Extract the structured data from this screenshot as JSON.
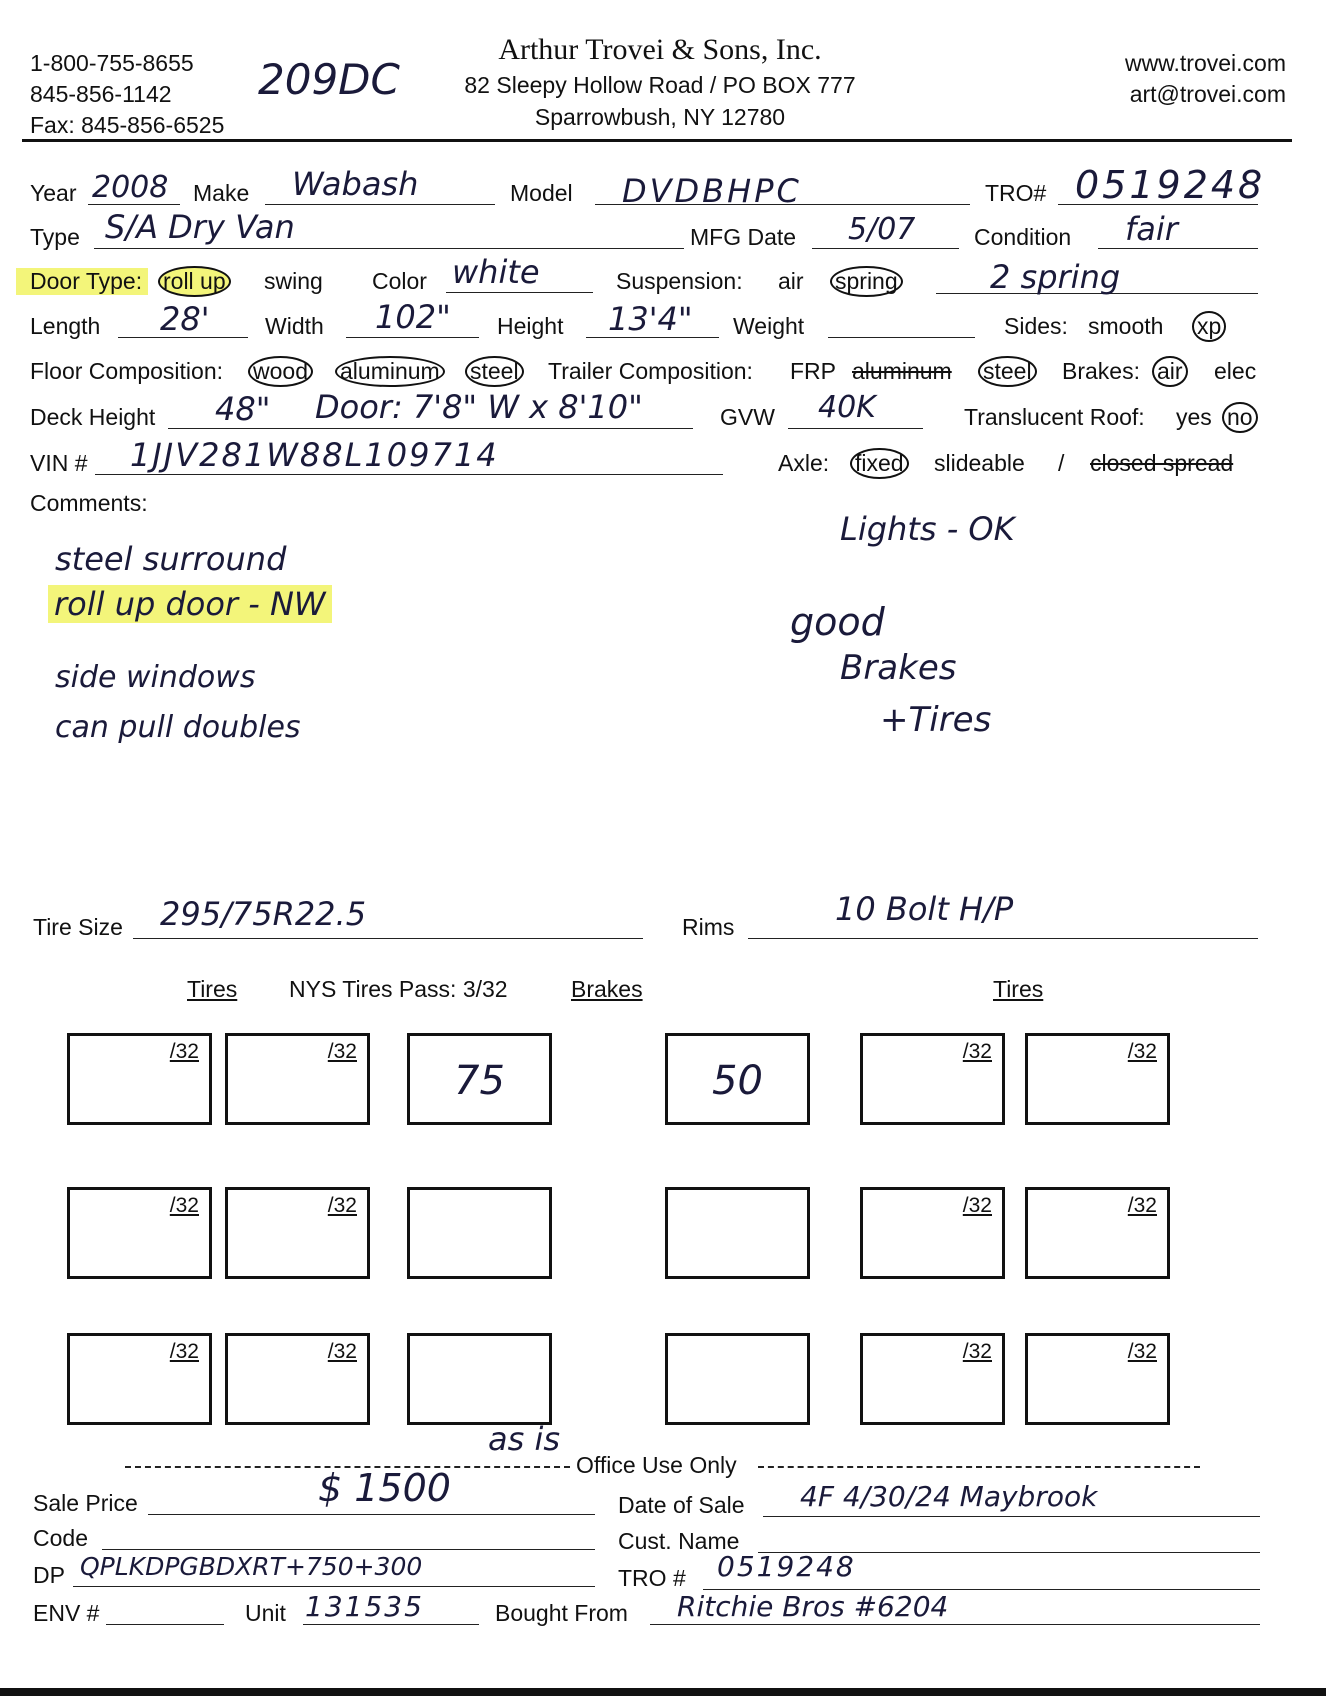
{
  "header": {
    "phones": [
      "1-800-755-8655",
      "845-856-1142",
      "Fax: 845-856-6525"
    ],
    "handwritten_code": "209DC",
    "company": "Arthur Trovei & Sons, Inc.",
    "address1": "82 Sleepy Hollow Road / PO BOX 777",
    "address2": "Sparrowbush, NY 12780",
    "website": "www.trovei.com",
    "email": "art@trovei.com"
  },
  "fields": {
    "year": {
      "label": "Year",
      "value": "2008"
    },
    "make": {
      "label": "Make",
      "value": "Wabash"
    },
    "model": {
      "label": "Model",
      "value": "DVDBHPC"
    },
    "tro": {
      "label": "TRO#",
      "value": "0519248"
    },
    "type": {
      "label": "Type",
      "value": "S/A Dry Van"
    },
    "mfg_date": {
      "label": "MFG Date",
      "value": "5/07"
    },
    "condition": {
      "label": "Condition",
      "value": "fair"
    },
    "door_type": {
      "label": "Door Type:",
      "options": [
        "roll up",
        "swing"
      ],
      "selected": "roll up"
    },
    "color": {
      "label": "Color",
      "value": "white"
    },
    "suspension": {
      "label": "Suspension:",
      "options": [
        "air",
        "spring"
      ],
      "selected": "spring",
      "note": "2 spring"
    },
    "length": {
      "label": "Length",
      "value": "28'"
    },
    "width": {
      "label": "Width",
      "value": "102\""
    },
    "height": {
      "label": "Height",
      "value": "13'4\""
    },
    "weight": {
      "label": "Weight",
      "value": ""
    },
    "sides": {
      "label": "Sides:",
      "options": [
        "smooth",
        "xp"
      ],
      "selected": "xp"
    },
    "floor": {
      "label": "Floor Composition:",
      "options": [
        "wood",
        "aluminum",
        "steel"
      ],
      "selected": [
        "wood",
        "aluminum",
        "steel"
      ]
    },
    "trailer_comp": {
      "label": "Trailer Composition:",
      "options": [
        "FRP",
        "aluminum",
        "steel"
      ],
      "selected": "steel",
      "struck": "aluminum"
    },
    "brakes": {
      "label": "Brakes:",
      "options": [
        "air",
        "elec"
      ],
      "selected": "air"
    },
    "deck_height": {
      "label": "Deck Height",
      "value": "48\"",
      "note": "Door: 7'8\" W x 8'10\""
    },
    "gvw": {
      "label": "GVW",
      "value": "40K"
    },
    "translucent_roof": {
      "label": "Translucent Roof:",
      "options": [
        "yes",
        "no"
      ],
      "selected": "no"
    },
    "vin": {
      "label": "VIN #",
      "value": "1JJV281W88L109714"
    },
    "axle": {
      "label": "Axle:",
      "options": [
        "fixed",
        "slideable",
        "/",
        "closed spread"
      ],
      "selected": "fixed"
    }
  },
  "comments": {
    "label": "Comments:",
    "left": [
      "steel surround",
      "roll up door - NW",
      "side windows",
      "can pull doubles"
    ],
    "right": [
      "Lights - OK",
      "good",
      "Brakes",
      "+Tires"
    ]
  },
  "tires": {
    "size_label": "Tire Size",
    "size_value": "295/75R22.5",
    "rims_label": "Rims",
    "rims_value": "10 Bolt H/P",
    "hdr_tires_left": "Tires",
    "nys": "NYS Tires Pass: 3/32",
    "hdr_brakes": "Brakes",
    "hdr_tires_right": "Tires",
    "unit": "/32",
    "rows": [
      [
        "",
        "",
        "75",
        "50",
        "",
        ""
      ],
      [
        "",
        "",
        "",
        "",
        "",
        ""
      ],
      [
        "",
        "",
        "",
        "",
        "",
        ""
      ]
    ]
  },
  "office": {
    "title": "Office Use Only",
    "note": "as is",
    "sale_price": {
      "label": "Sale Price",
      "value": "$ 1500"
    },
    "date_of_sale": {
      "label": "Date of Sale",
      "value": "4F 4/30/24 Maybrook"
    },
    "code": {
      "label": "Code",
      "value": ""
    },
    "cust_name": {
      "label": "Cust. Name",
      "value": ""
    },
    "dp": {
      "label": "DP",
      "value": "QPLKDPGBDXRT+750+300"
    },
    "tro": {
      "label": "TRO #",
      "value": "0519248"
    },
    "env": {
      "label": "ENV #",
      "value": ""
    },
    "unit": {
      "label": "Unit",
      "value": "131535"
    },
    "bought_from": {
      "label": "Bought From",
      "value": "Ritchie Bros #6204"
    }
  }
}
